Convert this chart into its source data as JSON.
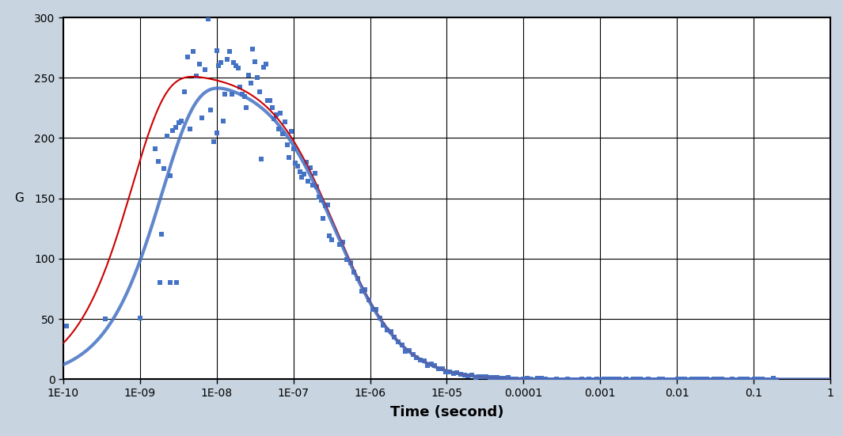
{
  "xlabel": "Time (second)",
  "ylabel": "G",
  "xlim": [
    1e-10,
    1.0
  ],
  "ylim": [
    0,
    300
  ],
  "yticks": [
    0,
    50,
    100,
    150,
    200,
    250,
    300
  ],
  "xtick_labels": [
    "1E-10",
    "1E-09",
    "1E-08",
    "1E-07",
    "1E-06",
    "1E-05",
    "0.0001",
    "0.001",
    "0.01",
    "0.1",
    "1"
  ],
  "xtick_values": [
    1e-10,
    1e-09,
    1e-08,
    1e-07,
    1e-06,
    1e-05,
    0.0001,
    0.001,
    0.01,
    0.1,
    1.0
  ],
  "scatter_color": "#4472C4",
  "fit_color_red": "#CC0000",
  "fit_color_blue": "#4472C4",
  "plot_bg": "#FFFFFF",
  "outer_bg": "#C8D4E0",
  "scatter_marker": "s",
  "scatter_size": 14,
  "grid_color": "#000000",
  "axis_color": "#000000",
  "fit_lw_red": 1.5,
  "fit_lw_blue": 3.0,
  "scatter_lw": 0,
  "tau_diff_blue": 3.5e-07,
  "tau_diff_red": 1.5e-08,
  "tau_rise_red": 5e-10,
  "tau_rise_blue": 2e-09,
  "G_amp_blue": 250.0,
  "G_amp_red": 255.0,
  "aspect_blue": 8.0,
  "aspect_red": 3.0
}
